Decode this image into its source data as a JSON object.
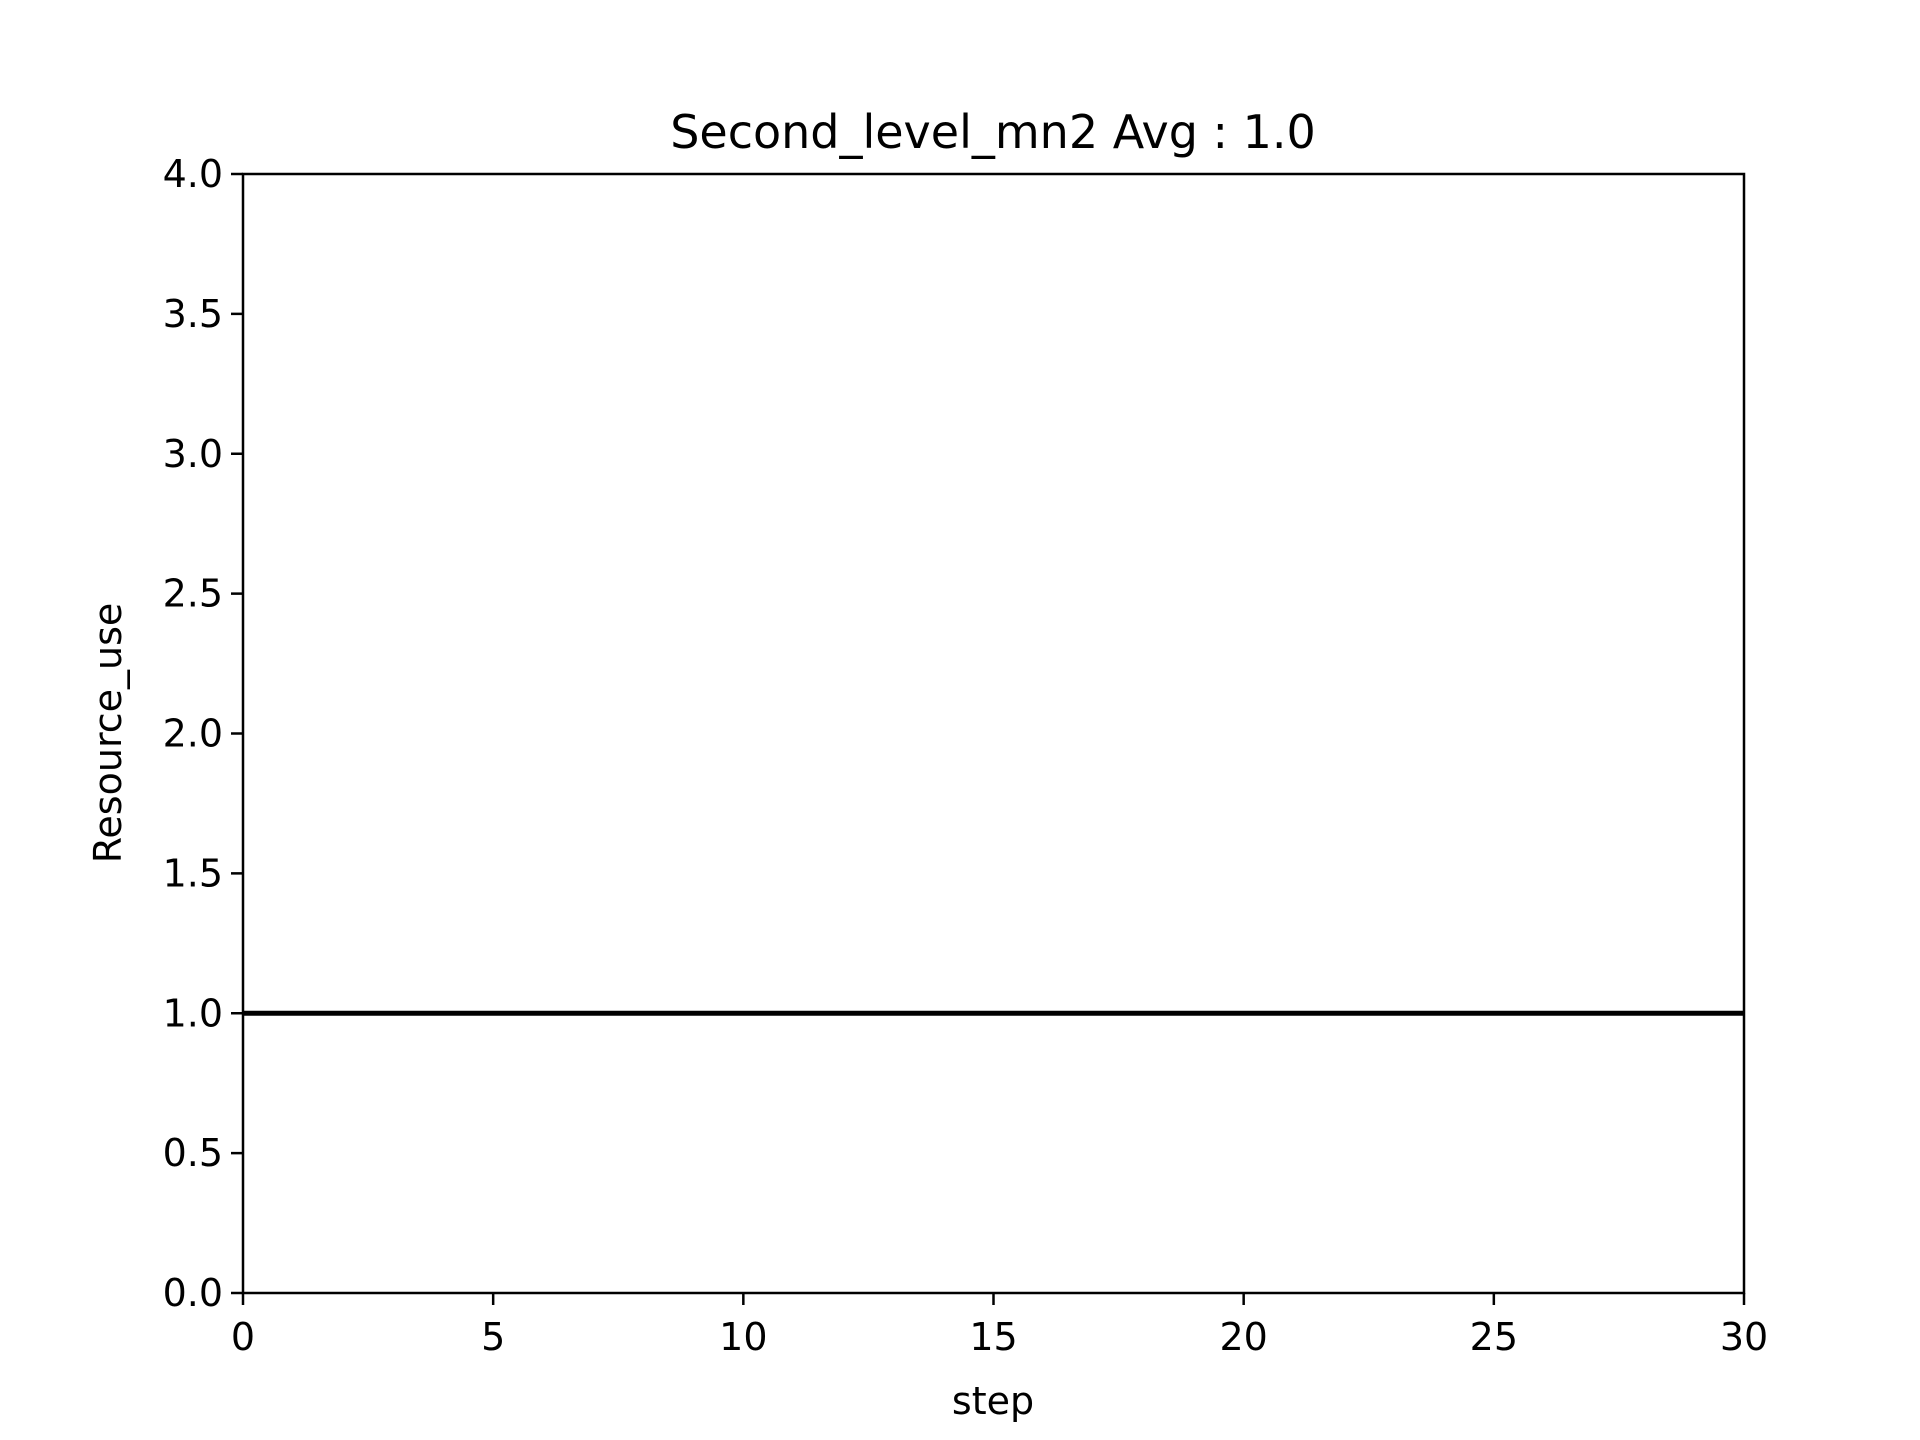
{
  "chart_data": {
    "type": "line",
    "title": "Second_level_mn2 Avg : 1.0",
    "xlabel": "step",
    "ylabel": "Resource_use",
    "xlim": [
      0,
      30
    ],
    "ylim": [
      0,
      4.0
    ],
    "xticks": [
      "0",
      "5",
      "10",
      "15",
      "20",
      "25",
      "30"
    ],
    "yticks": [
      "0.0",
      "0.5",
      "1.0",
      "1.5",
      "2.0",
      "2.5",
      "3.0",
      "3.5",
      "4.0"
    ],
    "grid": false,
    "series": [
      {
        "color": "#000000",
        "x": [
          0,
          30
        ],
        "y": [
          1.0,
          1.0
        ]
      }
    ]
  }
}
